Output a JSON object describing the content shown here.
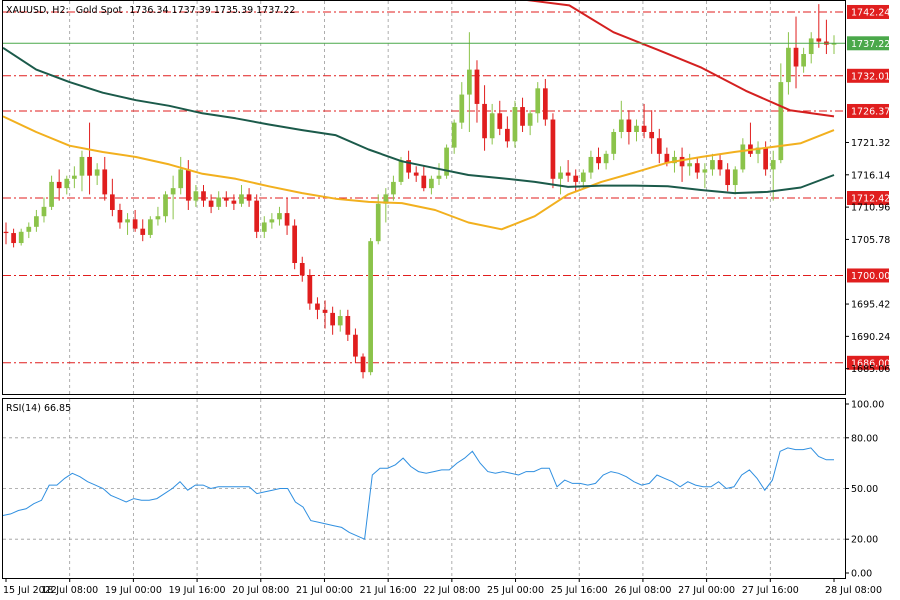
{
  "header": {
    "symbol": "XAUUSD, H2:",
    "description": "Gold Spot",
    "ohlc": "1736.34 1737.39 1735.39 1737.22"
  },
  "rsi_label": "RSI(14) 66.85",
  "colors": {
    "bull": "#8bc34a",
    "bear": "#e01e1e",
    "ma_fast": "#f2b01e",
    "ma_mid": "#d42020",
    "ma_slow": "#1b5a4a",
    "rsi": "#2f8fe0",
    "current_price": "#4aa84a",
    "level": "#e01e1e",
    "grid": "#9a9a9a"
  },
  "chart_data": [
    {
      "type": "candlestick",
      "symbol": "XAUUSD",
      "timeframe": "H2",
      "ylim": [
        1681,
        1744
      ],
      "y_ticks": [
        "1742.24",
        "1737.22",
        "1732.01",
        "1726.37",
        "1721.32",
        "1716.14",
        "1712.42",
        "1710.96",
        "1705.78",
        "1700.00",
        "1695.42",
        "1690.24",
        "1686.00",
        "1685.06"
      ],
      "x_ticks": [
        "15 Jul 2022",
        "18 Jul 08:00",
        "19 Jul 00:00",
        "19 Jul 16:00",
        "20 Jul 08:00",
        "21 Jul 00:00",
        "21 Jul 16:00",
        "22 Jul 08:00",
        "25 Jul 00:00",
        "25 Jul 16:00",
        "26 Jul 08:00",
        "27 Jul 00:00",
        "27 Jul 16:00",
        "28 Jul 08:00"
      ],
      "levels": [
        {
          "label": "1742.24",
          "value": 1742.24
        },
        {
          "label": "1732.01",
          "value": 1732.01
        },
        {
          "label": "1726.37",
          "value": 1726.37
        },
        {
          "label": "1712.42",
          "value": 1712.42
        },
        {
          "label": "1700.00",
          "value": 1700.0
        },
        {
          "label": "1686.00",
          "value": 1686.0
        }
      ],
      "current_price": {
        "label": "1737.22",
        "value": 1737.22
      },
      "candles": [
        [
          1707.0,
          1708.5,
          1705.0,
          1706.8
        ],
        [
          1706.8,
          1707.5,
          1704.5,
          1705.2
        ],
        [
          1705.2,
          1707.5,
          1704.8,
          1707.0
        ],
        [
          1707.0,
          1708.5,
          1706.0,
          1707.8
        ],
        [
          1707.8,
          1710.5,
          1707.0,
          1709.5
        ],
        [
          1709.5,
          1712.5,
          1708.5,
          1711.0
        ],
        [
          1711.0,
          1716.0,
          1710.5,
          1715.0
        ],
        [
          1715.0,
          1717.0,
          1712.0,
          1714.0
        ],
        [
          1714.0,
          1716.0,
          1713.0,
          1715.5
        ],
        [
          1715.5,
          1717.5,
          1714.0,
          1716.0
        ],
        [
          1716.0,
          1720.0,
          1713.5,
          1719.0
        ],
        [
          1719.0,
          1724.5,
          1713.0,
          1716.0
        ],
        [
          1716.0,
          1718.0,
          1714.5,
          1717.0
        ],
        [
          1717.0,
          1719.0,
          1712.0,
          1713.0
        ],
        [
          1713.0,
          1715.5,
          1709.5,
          1710.5
        ],
        [
          1710.5,
          1711.5,
          1707.5,
          1708.5
        ],
        [
          1708.5,
          1710.0,
          1706.5,
          1709.0
        ],
        [
          1709.0,
          1710.5,
          1707.0,
          1707.5
        ],
        [
          1707.5,
          1709.0,
          1705.5,
          1706.5
        ],
        [
          1706.5,
          1709.5,
          1706.0,
          1709.0
        ],
        [
          1709.0,
          1711.0,
          1708.0,
          1709.5
        ],
        [
          1709.5,
          1713.5,
          1708.5,
          1713.0
        ],
        [
          1713.0,
          1716.0,
          1709.0,
          1714.0
        ],
        [
          1714.0,
          1719.0,
          1713.0,
          1717.0
        ],
        [
          1717.0,
          1718.5,
          1710.5,
          1712.0
        ],
        [
          1712.0,
          1714.5,
          1711.0,
          1713.5
        ],
        [
          1713.5,
          1714.5,
          1711.0,
          1712.0
        ],
        [
          1712.0,
          1713.0,
          1710.0,
          1711.0
        ],
        [
          1711.0,
          1713.5,
          1710.5,
          1712.5
        ],
        [
          1712.5,
          1713.5,
          1711.0,
          1712.0
        ],
        [
          1712.0,
          1713.0,
          1710.5,
          1711.5
        ],
        [
          1711.5,
          1714.5,
          1711.0,
          1713.0
        ],
        [
          1713.0,
          1714.0,
          1711.0,
          1712.0
        ],
        [
          1712.0,
          1713.0,
          1706.0,
          1707.0
        ],
        [
          1707.0,
          1709.5,
          1706.0,
          1708.5
        ],
        [
          1708.5,
          1710.0,
          1707.5,
          1709.0
        ],
        [
          1709.0,
          1711.0,
          1708.0,
          1710.0
        ],
        [
          1710.0,
          1712.5,
          1706.5,
          1708.0
        ],
        [
          1708.0,
          1709.0,
          1701.0,
          1702.0
        ],
        [
          1702.0,
          1703.0,
          1699.0,
          1700.0
        ],
        [
          1700.0,
          1701.0,
          1694.5,
          1695.5
        ],
        [
          1695.5,
          1696.5,
          1693.0,
          1694.5
        ],
        [
          1694.5,
          1696.0,
          1691.5,
          1694.0
        ],
        [
          1694.0,
          1695.0,
          1690.5,
          1692.0
        ],
        [
          1692.0,
          1694.5,
          1691.0,
          1693.5
        ],
        [
          1693.5,
          1694.5,
          1689.5,
          1690.5
        ],
        [
          1690.5,
          1691.5,
          1686.0,
          1687.0
        ],
        [
          1687.0,
          1687.5,
          1683.5,
          1684.5
        ],
        [
          1684.5,
          1706.0,
          1684.0,
          1705.5
        ],
        [
          1705.5,
          1713.0,
          1705.0,
          1711.5
        ],
        [
          1711.5,
          1714.0,
          1708.5,
          1713.0
        ],
        [
          1713.0,
          1716.0,
          1712.0,
          1715.0
        ],
        [
          1715.0,
          1719.0,
          1714.5,
          1718.5
        ],
        [
          1718.5,
          1720.0,
          1715.5,
          1716.5
        ],
        [
          1716.5,
          1717.5,
          1715.0,
          1716.0
        ],
        [
          1716.0,
          1717.5,
          1713.5,
          1714.0
        ],
        [
          1714.0,
          1716.0,
          1713.0,
          1715.5
        ],
        [
          1715.5,
          1718.0,
          1714.5,
          1716.0
        ],
        [
          1716.0,
          1721.0,
          1715.5,
          1720.5
        ],
        [
          1720.5,
          1725.0,
          1719.5,
          1724.5
        ],
        [
          1724.5,
          1731.0,
          1723.5,
          1729.0
        ],
        [
          1729.0,
          1739.0,
          1723.0,
          1733.0
        ],
        [
          1733.0,
          1734.5,
          1724.5,
          1727.5
        ],
        [
          1727.5,
          1730.5,
          1720.0,
          1722.0
        ],
        [
          1722.0,
          1727.5,
          1721.0,
          1726.0
        ],
        [
          1726.0,
          1728.0,
          1722.5,
          1723.5
        ],
        [
          1723.5,
          1725.5,
          1720.5,
          1721.5
        ],
        [
          1721.5,
          1728.0,
          1720.5,
          1727.0
        ],
        [
          1727.0,
          1728.5,
          1723.0,
          1724.0
        ],
        [
          1724.0,
          1726.5,
          1722.5,
          1726.0
        ],
        [
          1726.0,
          1731.0,
          1724.5,
          1730.0
        ],
        [
          1730.0,
          1731.5,
          1724.0,
          1725.0
        ],
        [
          1725.0,
          1726.0,
          1714.0,
          1715.5
        ],
        [
          1715.5,
          1717.5,
          1713.0,
          1716.5
        ],
        [
          1716.5,
          1718.5,
          1715.0,
          1716.0
        ],
        [
          1716.0,
          1717.0,
          1713.5,
          1715.0
        ],
        [
          1715.0,
          1717.0,
          1714.0,
          1716.5
        ],
        [
          1716.5,
          1720.0,
          1715.5,
          1719.0
        ],
        [
          1719.0,
          1720.5,
          1717.0,
          1718.0
        ],
        [
          1718.0,
          1720.0,
          1717.0,
          1719.5
        ],
        [
          1719.5,
          1723.5,
          1718.5,
          1723.0
        ],
        [
          1723.0,
          1728.0,
          1722.0,
          1725.0
        ],
        [
          1725.0,
          1726.5,
          1721.0,
          1723.0
        ],
        [
          1723.0,
          1725.0,
          1721.5,
          1724.0
        ],
        [
          1724.0,
          1727.5,
          1722.0,
          1723.0
        ],
        [
          1723.0,
          1726.5,
          1719.5,
          1722.0
        ],
        [
          1722.0,
          1723.5,
          1718.0,
          1719.5
        ],
        [
          1719.5,
          1720.5,
          1717.5,
          1718.0
        ],
        [
          1718.0,
          1720.0,
          1716.5,
          1719.0
        ],
        [
          1719.0,
          1720.5,
          1715.0,
          1717.5
        ],
        [
          1717.5,
          1719.5,
          1716.0,
          1718.0
        ],
        [
          1718.0,
          1719.0,
          1715.5,
          1716.5
        ],
        [
          1716.5,
          1718.0,
          1714.0,
          1717.0
        ],
        [
          1717.0,
          1719.5,
          1716.0,
          1718.5
        ],
        [
          1718.5,
          1719.5,
          1716.0,
          1717.0
        ],
        [
          1717.0,
          1718.0,
          1713.5,
          1714.5
        ],
        [
          1714.5,
          1717.5,
          1713.0,
          1717.0
        ],
        [
          1717.0,
          1722.0,
          1716.5,
          1721.0
        ],
        [
          1721.0,
          1724.5,
          1719.0,
          1719.5
        ],
        [
          1719.5,
          1721.5,
          1718.0,
          1720.5
        ],
        [
          1720.5,
          1721.5,
          1716.0,
          1717.0
        ],
        [
          1717.0,
          1720.0,
          1712.0,
          1718.5
        ],
        [
          1718.5,
          1734.0,
          1718.0,
          1731.0
        ],
        [
          1731.0,
          1739.0,
          1729.0,
          1736.5
        ],
        [
          1736.5,
          1741.5,
          1730.0,
          1733.5
        ],
        [
          1733.5,
          1736.5,
          1732.5,
          1735.5
        ],
        [
          1735.5,
          1739.0,
          1734.0,
          1738.0
        ],
        [
          1738.0,
          1743.5,
          1736.5,
          1737.5
        ],
        [
          1737.5,
          1741.0,
          1735.5,
          1737.0
        ],
        [
          1737.0,
          1738.5,
          1735.5,
          1737.22
        ]
      ],
      "moving_averages": [
        {
          "role": "fast",
          "values": [
            1725.5,
            1723.0,
            1720.8,
            1719.8,
            1719.0,
            1717.8,
            1716.3,
            1715.5,
            1714.3,
            1713.2,
            1712.3,
            1711.8,
            1711.6,
            1710.5,
            1708.5,
            1707.4,
            1709.5,
            1713.0,
            1715.0,
            1716.5,
            1718.1,
            1719.0,
            1719.8,
            1720.5,
            1721.2,
            1723.3
          ]
        },
        {
          "role": "mid",
          "values": [
            1744.2,
            1744.2,
            1743.3,
            1739.0,
            1736.2,
            1733.3,
            1729.6,
            1726.5,
            1725.5
          ]
        },
        {
          "role": "slow",
          "values": [
            1736.5,
            1733.0,
            1731.0,
            1729.3,
            1728.1,
            1727.2,
            1726.0,
            1725.2,
            1724.2,
            1723.3,
            1722.5,
            1720.2,
            1718.3,
            1717.2,
            1716.1,
            1715.6,
            1715.0,
            1714.2,
            1714.4,
            1714.4,
            1714.3,
            1713.7,
            1713.2,
            1713.4,
            1714.1,
            1716.1
          ]
        }
      ]
    },
    {
      "type": "line",
      "name": "RSI(14) 66.85",
      "ylim": [
        0,
        100
      ],
      "y_ticks": [
        "100.00",
        "80.00",
        "50.00",
        "20.00",
        "0.00"
      ],
      "levels": [
        80,
        50,
        20
      ],
      "values": [
        34,
        35,
        37,
        38,
        41,
        43,
        52,
        52,
        56,
        59,
        57,
        54,
        52,
        50,
        46,
        44,
        42,
        44,
        43,
        43,
        44,
        47,
        50,
        54,
        49,
        52,
        52,
        50,
        51,
        51,
        51,
        51,
        51,
        47,
        48,
        49,
        50,
        50,
        42,
        39,
        31,
        30,
        29,
        28,
        27,
        24,
        22,
        20,
        58,
        62,
        62,
        64,
        68,
        63,
        60,
        59,
        60,
        61,
        61,
        65,
        68,
        72,
        65,
        60,
        59,
        60,
        59,
        58,
        60,
        60,
        62,
        62,
        51,
        55,
        53,
        53,
        52,
        53,
        58,
        60,
        59,
        57,
        54,
        52,
        53,
        58,
        56,
        54,
        51,
        54,
        52,
        51,
        51,
        54,
        50,
        51,
        58,
        61,
        56,
        49,
        55,
        72,
        74,
        73,
        73,
        74,
        69,
        67,
        67
      ]
    }
  ]
}
